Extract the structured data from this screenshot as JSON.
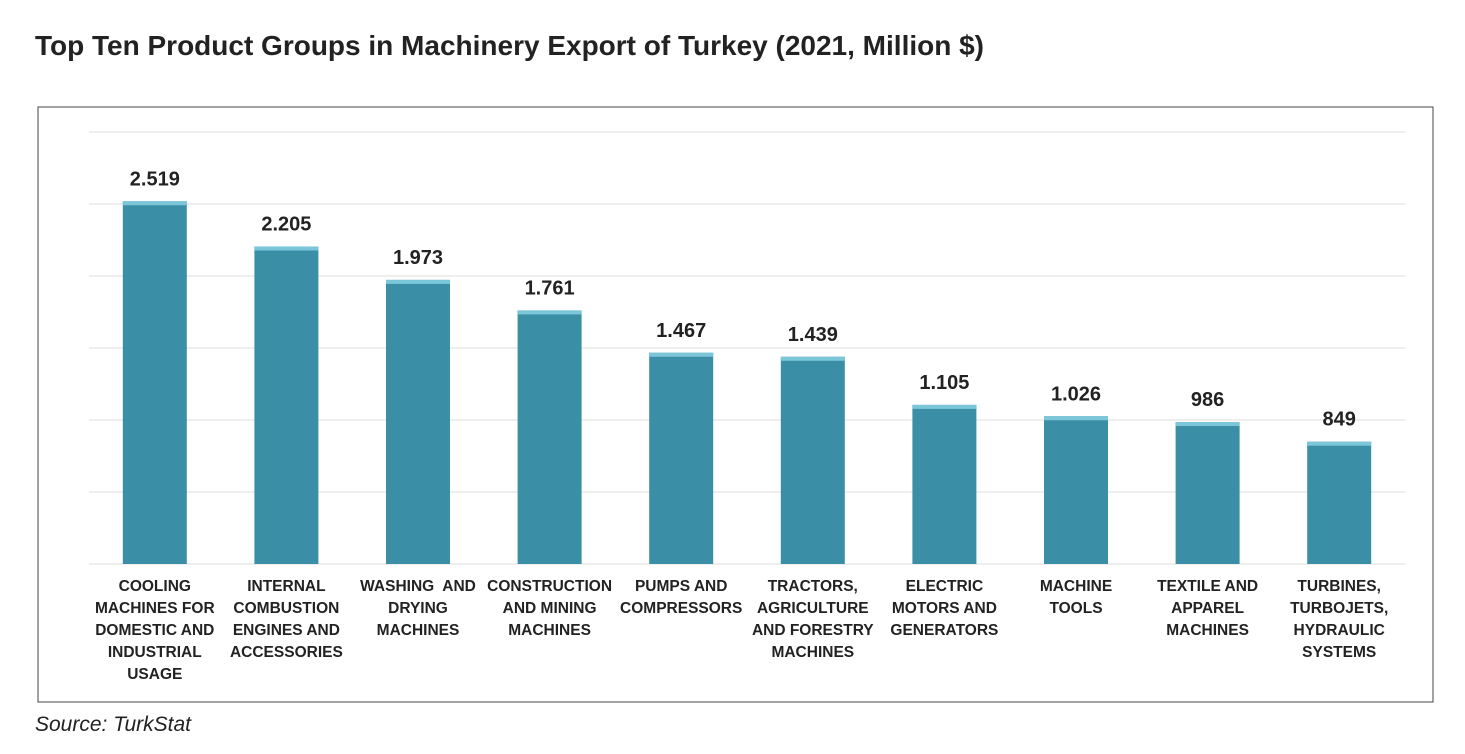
{
  "chart_data": {
    "type": "bar",
    "title": "Top Ten Product Groups in Machinery Export of Turkey (2021, Million $)",
    "categories": [
      "COOLING MACHINES FOR DOMESTIC AND INDUSTRIAL USAGE",
      "INTERNAL COMBUSTION ENGINES AND ACCESSORIES",
      "WASHING  AND DRYING MACHINES",
      "CONSTRUCTION AND MINING MACHINES",
      "PUMPS AND COMPRESSORS",
      "TRACTORS, AGRICULTURE AND FORESTRY MACHINES",
      "ELECTRIC MOTORS AND GENERATORS",
      "MACHINE TOOLS",
      "TEXTILE AND APPAREL MACHINES",
      "TURBINES, TURBOJETS, HYDRAULIC SYSTEMS"
    ],
    "values": [
      2519,
      2205,
      1973,
      1761,
      1467,
      1439,
      1105,
      1026,
      986,
      849
    ],
    "value_labels": [
      "2.519",
      "2.205",
      "1.973",
      "1.761",
      "1.467",
      "1.439",
      "1.105",
      "1.026",
      "986",
      "849"
    ],
    "color": "#3a8fa6",
    "ylim": [
      0,
      3000
    ],
    "yticks": [
      0,
      500,
      1000,
      1500,
      2000,
      2500,
      3000
    ],
    "grid": true,
    "source": "Source: TurkStat"
  }
}
